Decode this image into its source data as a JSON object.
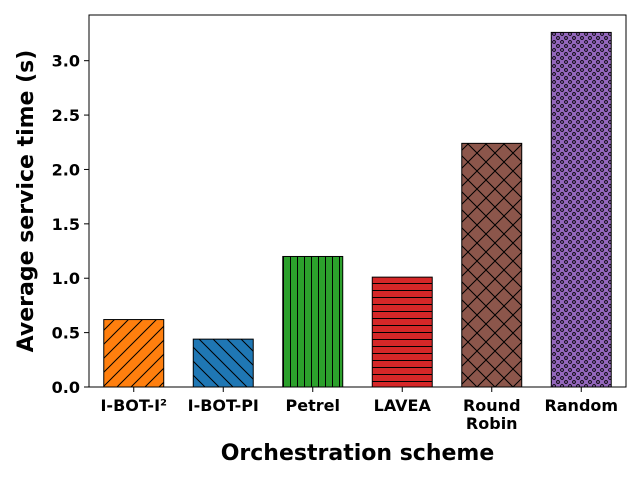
{
  "chart_data": {
    "type": "bar",
    "categories": [
      "I-BOT-I²",
      "I-BOT-PI",
      "Petrel",
      "LAVEA",
      "Round Robin",
      "Random"
    ],
    "category_lines": [
      [
        "I-BOT-I²"
      ],
      [
        "I-BOT-PI"
      ],
      [
        "Petrel"
      ],
      [
        "LAVEA"
      ],
      [
        "Round",
        "Robin"
      ],
      [
        "Random"
      ]
    ],
    "values": [
      0.62,
      0.44,
      1.2,
      1.01,
      2.24,
      3.26
    ],
    "colors": [
      "#ff7f0e",
      "#1f77b4",
      "#2ca02c",
      "#d62728",
      "#8c564b",
      "#9467bd"
    ],
    "hatches": [
      "diagonal-up",
      "diagonal-down",
      "vertical",
      "horizontal",
      "crosshatch",
      "dots"
    ],
    "title": "",
    "xlabel": "Orchestration scheme",
    "ylabel": "Average service time (s)",
    "ylim": [
      0,
      3.42
    ],
    "yticks": [
      "0.0",
      "0.5",
      "1.0",
      "1.5",
      "2.0",
      "2.5",
      "3.0"
    ],
    "ytick_values": [
      0,
      0.5,
      1.0,
      1.5,
      2.0,
      2.5,
      3.0
    ],
    "grid": false,
    "legend": "none"
  }
}
